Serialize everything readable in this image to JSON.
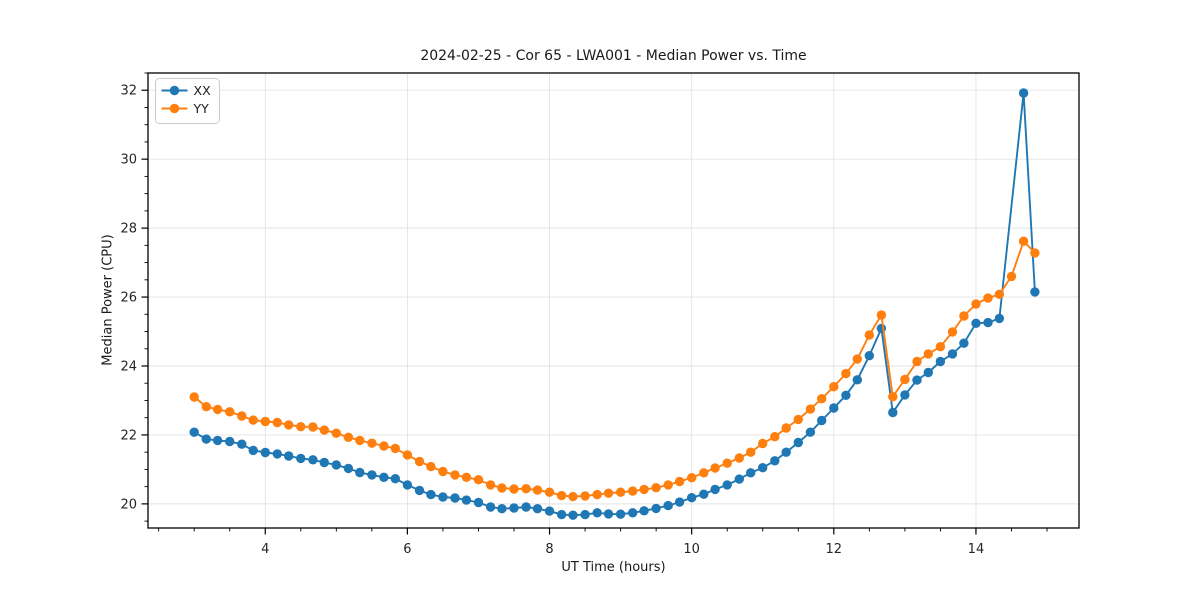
{
  "chart_data": {
    "type": "line",
    "title": "2024-02-25 - Cor 65 - LWA001 - Median Power vs. Time",
    "xlabel": "UT Time (hours)",
    "ylabel": "Median Power (CPU)",
    "xlim": [
      2.35,
      15.45
    ],
    "ylim": [
      19.3,
      32.5
    ],
    "x_ticks": [
      4,
      6,
      8,
      10,
      12,
      14
    ],
    "y_ticks": [
      20,
      22,
      24,
      26,
      28,
      30,
      32
    ],
    "minor_tick_step": 0.5,
    "grid": true,
    "grid_color": "#e3e3e3",
    "legend_position": "upper left",
    "marker": "circle",
    "x": [
      3.0,
      3.17,
      3.33,
      3.5,
      3.67,
      3.83,
      4.0,
      4.17,
      4.33,
      4.5,
      4.67,
      4.83,
      5.0,
      5.17,
      5.33,
      5.5,
      5.67,
      5.83,
      6.0,
      6.17,
      6.33,
      6.5,
      6.67,
      6.83,
      7.0,
      7.17,
      7.33,
      7.5,
      7.67,
      7.83,
      8.0,
      8.17,
      8.33,
      8.5,
      8.67,
      8.83,
      9.0,
      9.17,
      9.33,
      9.5,
      9.67,
      9.83,
      10.0,
      10.17,
      10.33,
      10.5,
      10.67,
      10.83,
      11.0,
      11.17,
      11.33,
      11.5,
      11.67,
      11.83,
      12.0,
      12.17,
      12.33,
      12.5,
      12.67,
      12.83,
      13.0,
      13.17,
      13.33,
      13.5,
      13.67,
      13.83,
      14.0,
      14.17,
      14.33,
      14.5,
      14.67,
      14.83
    ],
    "series": [
      {
        "name": "XX",
        "color": "#1f77b4",
        "values": [
          22.08,
          21.88,
          21.84,
          21.81,
          21.73,
          21.55,
          21.49,
          21.45,
          21.39,
          21.32,
          21.28,
          21.2,
          21.13,
          21.03,
          20.91,
          20.84,
          20.77,
          20.73,
          20.55,
          20.39,
          20.27,
          20.2,
          20.17,
          20.11,
          20.04,
          19.91,
          19.86,
          19.88,
          19.91,
          19.86,
          19.79,
          19.69,
          19.67,
          19.69,
          19.74,
          19.71,
          19.7,
          19.74,
          19.8,
          19.87,
          19.95,
          20.05,
          20.18,
          20.28,
          20.42,
          20.55,
          20.72,
          20.9,
          21.05,
          21.25,
          21.5,
          21.78,
          22.08,
          22.42,
          22.78,
          23.15,
          23.6,
          24.3,
          25.09,
          22.65,
          23.16,
          23.59,
          23.81,
          24.13,
          24.35,
          24.66,
          25.24,
          25.26,
          25.38,
          null,
          31.92,
          26.15
        ]
      },
      {
        "name": "YY",
        "color": "#ff7f0e",
        "values": [
          23.1,
          22.82,
          22.74,
          22.67,
          22.55,
          22.43,
          22.39,
          22.36,
          22.29,
          22.24,
          22.23,
          22.14,
          22.05,
          21.93,
          21.84,
          21.76,
          21.68,
          21.61,
          21.42,
          21.23,
          21.08,
          20.94,
          20.84,
          20.77,
          20.7,
          20.55,
          20.46,
          20.43,
          20.44,
          20.4,
          20.34,
          20.24,
          20.21,
          20.23,
          20.27,
          20.31,
          20.34,
          20.37,
          20.42,
          20.47,
          20.55,
          20.65,
          20.76,
          20.9,
          21.04,
          21.18,
          21.33,
          21.5,
          21.75,
          21.95,
          22.2,
          22.45,
          22.75,
          23.05,
          23.4,
          23.78,
          24.2,
          24.9,
          25.48,
          23.11,
          23.61,
          24.13,
          24.35,
          24.56,
          24.99,
          25.45,
          25.8,
          25.97,
          26.08,
          26.6,
          27.62,
          27.28
        ]
      }
    ]
  }
}
